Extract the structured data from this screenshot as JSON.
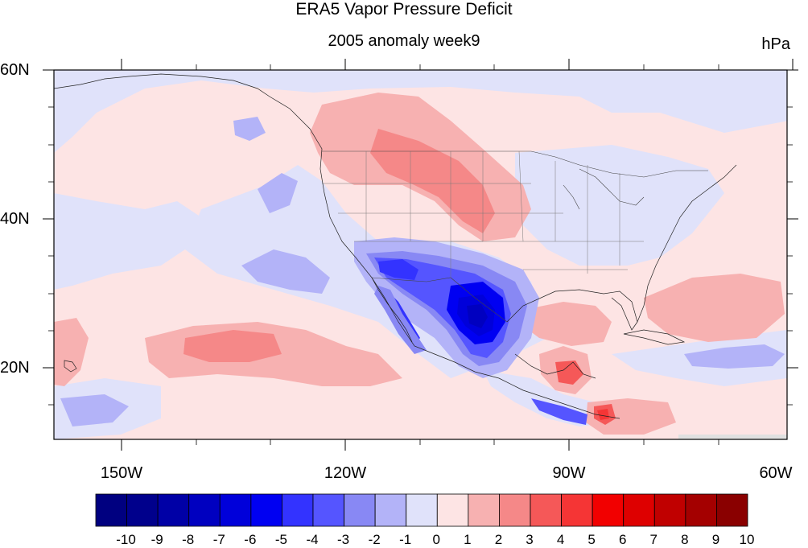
{
  "title": "ERA5 Vapor Pressure Deficit",
  "subtitle": "2005 anomaly week9",
  "units": "hPa",
  "axes": {
    "lat_labels": [
      "60N",
      "40N",
      "20N"
    ],
    "lon_labels": [
      "150W",
      "120W",
      "90W",
      "60W"
    ],
    "lon_range": [
      -159,
      -60
    ],
    "lat_range": [
      10,
      60
    ]
  },
  "colorbar": {
    "labels": [
      "-10",
      "-9",
      "-8",
      "-7",
      "-6",
      "-5",
      "-4",
      "-3",
      "-2",
      "-1",
      "0",
      "1",
      "2",
      "3",
      "4",
      "5",
      "6",
      "7",
      "8",
      "9",
      "10"
    ],
    "colors": [
      "#000080",
      "#00008c",
      "#0000a6",
      "#0000c0",
      "#0000da",
      "#0000f2",
      "#3333ff",
      "#5555ff",
      "#8888f4",
      "#b3b3f8",
      "#e0e2fa",
      "#fde4e4",
      "#f7b1b1",
      "#f58888",
      "#f55858",
      "#f53535",
      "#f20000",
      "#de0000",
      "#c00000",
      "#a40000",
      "#8a0000"
    ]
  },
  "chart_data": {
    "type": "heatmap",
    "variable": "Vapor Pressure Deficit",
    "units": "hPa",
    "xlim": [
      -159,
      -60
    ],
    "ylim": [
      10,
      60
    ],
    "color_levels": [
      -10,
      -9,
      -8,
      -7,
      -6,
      -5,
      -4,
      -3,
      -2,
      -1,
      0,
      1,
      2,
      3,
      4,
      5,
      6,
      7,
      8,
      9,
      10
    ]
  }
}
